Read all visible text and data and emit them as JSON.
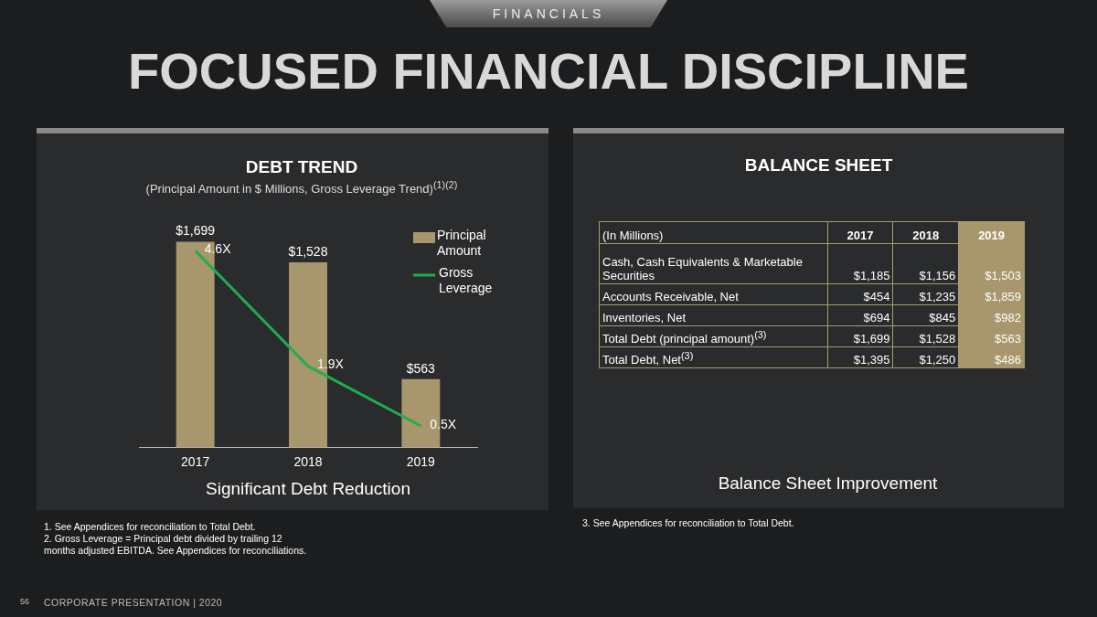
{
  "chart_data": [
    {
      "type": "other",
      "title": "FOCUSED FINANCIAL DISCIPLINE",
      "subtitle": "FINANCIALS",
      "annotations": [
        "56",
        "CORPORATE PRESENTATION   |   2020"
      ]
    },
    {
      "type": "bar",
      "title": "DEBT TREND",
      "subtitle": "(Principal Amount in $ Millions, Gross Leverage Trend)$^{(1)(2)}$",
      "xlabel": "Significant Debt Reduction",
      "categories": [
        "2017",
        "2018",
        "2019"
      ],
      "series": [
        {
          "name": "Principal Amount",
          "color": "#a8966c",
          "values": [
            1699,
            1528,
            563
          ],
          "value_labels": [
            "$1,699",
            "$1,528",
            "$563"
          ]
        },
        {
          "name": "Gross Leverage",
          "type": "line",
          "axis": "y2",
          "color": "#1fae4b",
          "values": [
            4.6,
            1.9,
            0.5
          ],
          "value_labels": [
            "4.6X",
            "1.9X",
            "0.5X"
          ]
        }
      ],
      "ylim": [
        0,
        1800
      ],
      "y2lim": [
        0,
        5.1
      ],
      "tick_labels": "x",
      "grid": false,
      "legend": "top right",
      "marker": "none",
      "line_style": "solid",
      "annotations": [
        "1.   See Appendices for  reconciliation to Total Debt.",
        "2.   Gross Leverage = Principal debt divided by trailing 12 months adjusted EBITDA. See Appendices for reconciliations."
      ]
    },
    {
      "type": "other",
      "title": "BALANCE SHEET",
      "xlabel": "Balance Sheet Improvement",
      "ylabel": "(In Millions)",
      "categories": [
        "2017",
        "2018",
        "2019"
      ],
      "y_categories": [
        "Cash, Cash Equivalents & Marketable Securities",
        "Accounts Receivable, Net",
        "Inventories, Net",
        "Total Debt (principal amount)$^{(3)}$",
        "Total Debt, Net$^{(3)}$"
      ],
      "cell_labels": [
        [
          "$1,185",
          "$1,156",
          "$1,503"
        ],
        [
          "$454",
          "$1,235",
          "$1,859"
        ],
        [
          "$694",
          "$845",
          "$982"
        ],
        [
          "$1,699",
          "$1,528",
          "$563"
        ],
        [
          "$1,395",
          "$1,250",
          "$486"
        ]
      ],
      "annotations": [
        "3.      See Appendices for reconciliation to Total Debt."
      ]
    }
  ]
}
